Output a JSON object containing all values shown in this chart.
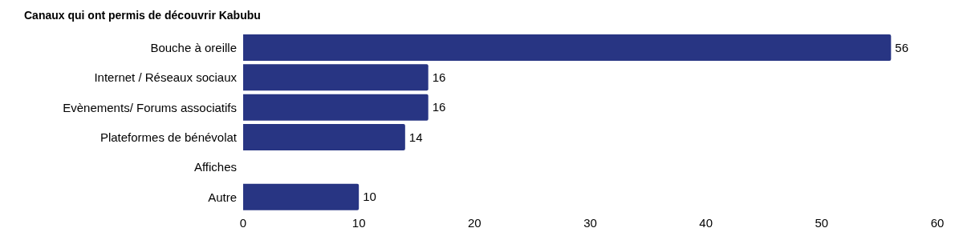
{
  "chart_data": {
    "type": "bar",
    "orientation": "horizontal",
    "title": "Canaux qui ont permis de découvrir Kabubu",
    "categories": [
      "Bouche à oreille",
      "Internet / Réseaux sociaux",
      "Evènements/ Forums associatifs",
      "Plateformes de bénévolat",
      "Affiches",
      "Autre"
    ],
    "values": [
      56,
      16,
      16,
      14,
      null,
      10
    ],
    "color": "#283583",
    "xlim": [
      0,
      60
    ],
    "xticks": [
      0,
      10,
      20,
      30,
      40,
      50,
      60
    ],
    "grid": false,
    "data_labels": true
  }
}
